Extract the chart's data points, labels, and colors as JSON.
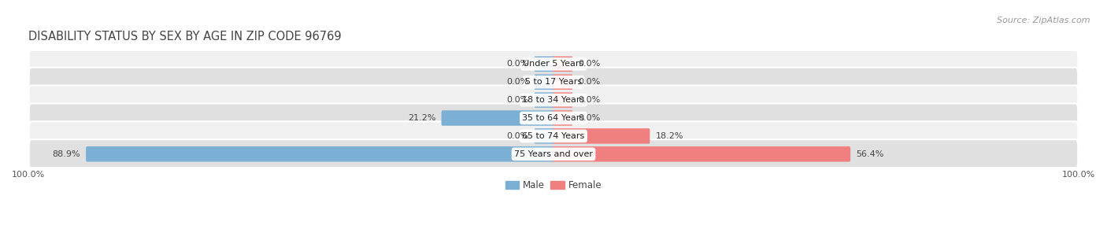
{
  "title": "DISABILITY STATUS BY SEX BY AGE IN ZIP CODE 96769",
  "source": "Source: ZipAtlas.com",
  "categories": [
    "Under 5 Years",
    "5 to 17 Years",
    "18 to 34 Years",
    "35 to 64 Years",
    "65 to 74 Years",
    "75 Years and over"
  ],
  "male_values": [
    0.0,
    0.0,
    0.0,
    21.2,
    0.0,
    88.9
  ],
  "female_values": [
    0.0,
    0.0,
    0.0,
    0.0,
    18.2,
    56.4
  ],
  "male_color": "#7bafd4",
  "female_color": "#f08080",
  "male_color_dark": "#5a9fc4",
  "female_color_dark": "#e06070",
  "row_bg_light": "#f0f0f0",
  "row_bg_dark": "#e0e0e0",
  "max_value": 100.0,
  "min_bar_width": 3.5,
  "label_fontsize": 8,
  "category_fontsize": 8,
  "title_fontsize": 10.5,
  "source_fontsize": 8,
  "legend_male": "Male",
  "legend_female": "Female"
}
